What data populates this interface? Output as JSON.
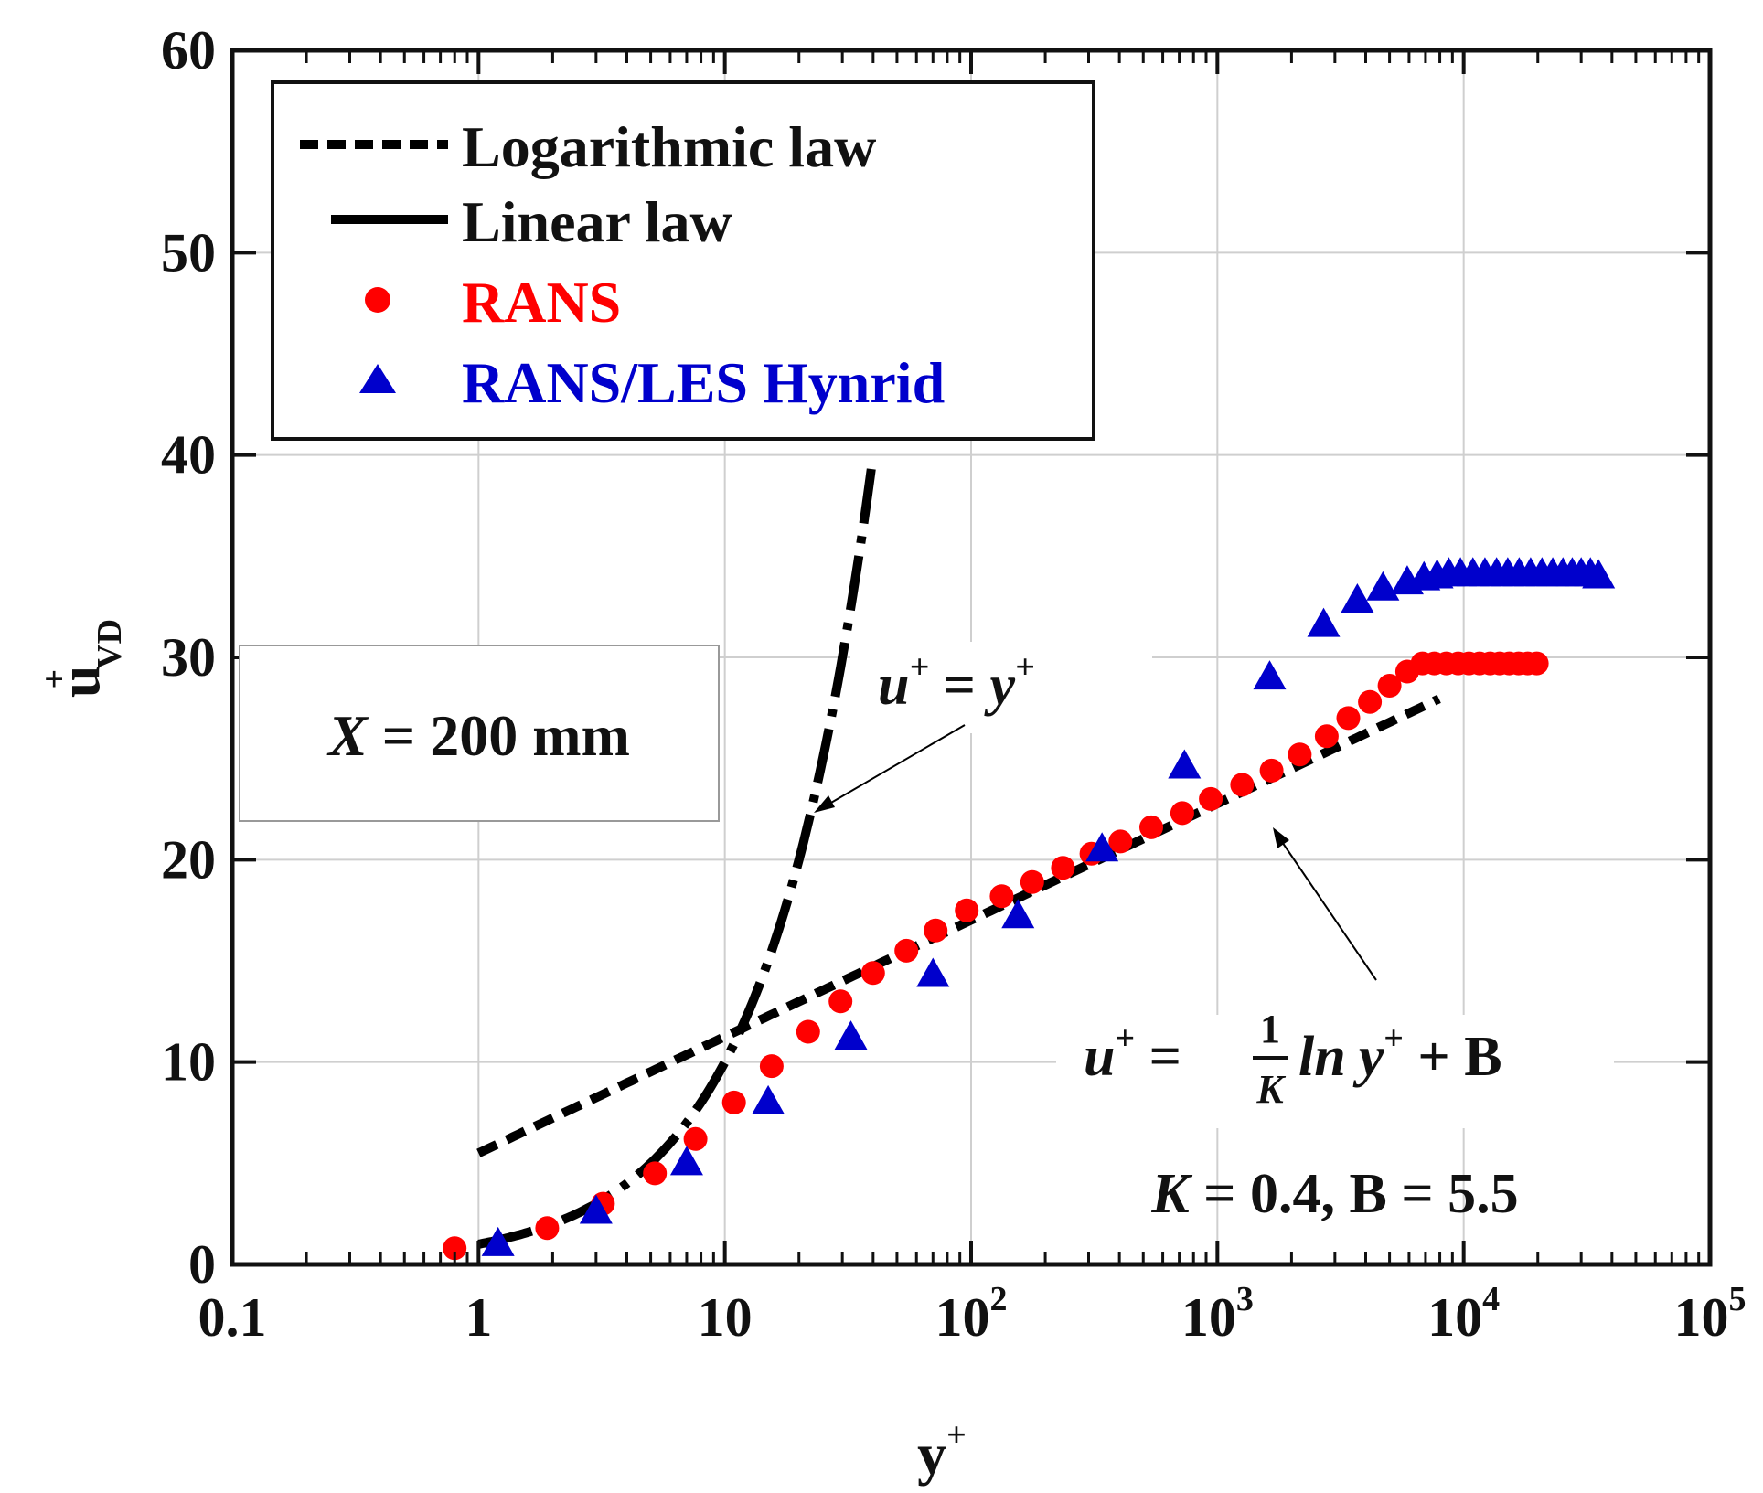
{
  "chart_data": {
    "type": "scatter",
    "x_scale": "log",
    "xlim": [
      0.1,
      100000
    ],
    "ylim": [
      0,
      60
    ],
    "x_ticks": [
      {
        "value": 0.1,
        "base": "0.1",
        "exp": ""
      },
      {
        "value": 1,
        "base": "1",
        "exp": ""
      },
      {
        "value": 10,
        "base": "10",
        "exp": ""
      },
      {
        "value": 100,
        "base": "10",
        "exp": "2"
      },
      {
        "value": 1000,
        "base": "10",
        "exp": "3"
      },
      {
        "value": 10000,
        "base": "10",
        "exp": "4"
      },
      {
        "value": 100000,
        "base": "10",
        "exp": "5"
      }
    ],
    "y_ticks": [
      {
        "value": 0,
        "label": "0"
      },
      {
        "value": 10,
        "label": "10"
      },
      {
        "value": 20,
        "label": "20"
      },
      {
        "value": 30,
        "label": "30"
      },
      {
        "value": 40,
        "label": "40"
      },
      {
        "value": 50,
        "label": "50"
      },
      {
        "value": 60,
        "label": "60"
      }
    ],
    "xlabel": {
      "base": "y",
      "sup": "+"
    },
    "ylabel": {
      "base": "u",
      "sup": "+",
      "sub": "VD"
    },
    "grid": true,
    "legend_position": "top-left",
    "colors": {
      "rans": "#ff0000",
      "hybrid": "#0000cc",
      "lines": "#000000"
    },
    "series": [
      {
        "key": "log",
        "name": "Logarithmic law",
        "kind": "dashed-line",
        "kappa": 0.4,
        "B": 5.5,
        "x_range": [
          1,
          8000
        ]
      },
      {
        "key": "linear",
        "name": "Linear law",
        "kind": "dashdot-line",
        "x_range": [
          1,
          40
        ]
      },
      {
        "key": "rans",
        "name": "RANS",
        "kind": "circle",
        "points": [
          [
            0.8,
            0.8
          ],
          [
            1.9,
            1.8
          ],
          [
            3.2,
            3.0
          ],
          [
            5.2,
            4.5
          ],
          [
            7.6,
            6.2
          ],
          [
            10.9,
            8.0
          ],
          [
            15.5,
            9.8
          ],
          [
            21.8,
            11.5
          ],
          [
            29.5,
            13.0
          ],
          [
            40,
            14.4
          ],
          [
            54.6,
            15.5
          ],
          [
            71.8,
            16.5
          ],
          [
            96,
            17.5
          ],
          [
            133,
            18.2
          ],
          [
            177,
            18.9
          ],
          [
            236,
            19.6
          ],
          [
            308,
            20.3
          ],
          [
            404,
            20.9
          ],
          [
            539,
            21.6
          ],
          [
            720,
            22.3
          ],
          [
            940,
            23.0
          ],
          [
            1260,
            23.7
          ],
          [
            1660,
            24.4
          ],
          [
            2160,
            25.2
          ],
          [
            2780,
            26.1
          ],
          [
            3400,
            27.0
          ],
          [
            4160,
            27.8
          ],
          [
            5000,
            28.6
          ],
          [
            5900,
            29.3
          ],
          [
            6800,
            29.7
          ],
          [
            7600,
            29.7
          ],
          [
            8500,
            29.7
          ],
          [
            9500,
            29.7
          ],
          [
            10500,
            29.7
          ],
          [
            11600,
            29.7
          ],
          [
            12800,
            29.7
          ],
          [
            14000,
            29.7
          ],
          [
            15300,
            29.7
          ],
          [
            16700,
            29.7
          ],
          [
            18200,
            29.7
          ],
          [
            19800,
            29.7
          ]
        ]
      },
      {
        "key": "hybrid",
        "name": "RANS/LES Hynrid",
        "kind": "triangle",
        "points": [
          [
            1.2,
            1.0
          ],
          [
            3.0,
            2.6
          ],
          [
            7.0,
            5.0
          ],
          [
            15.0,
            8.0
          ],
          [
            32.5,
            11.2
          ],
          [
            70,
            14.3
          ],
          [
            155,
            17.2
          ],
          [
            340,
            20.5
          ],
          [
            735,
            24.6
          ],
          [
            1630,
            29.0
          ],
          [
            2700,
            31.6
          ],
          [
            3700,
            32.8
          ],
          [
            4700,
            33.4
          ],
          [
            5900,
            33.7
          ],
          [
            6900,
            33.9
          ],
          [
            7800,
            34.0
          ],
          [
            8700,
            34.1
          ],
          [
            9700,
            34.1
          ],
          [
            10900,
            34.1
          ],
          [
            12200,
            34.1
          ],
          [
            13600,
            34.1
          ],
          [
            15100,
            34.1
          ],
          [
            16800,
            34.1
          ],
          [
            18700,
            34.1
          ],
          [
            20800,
            34.1
          ],
          [
            23000,
            34.1
          ],
          [
            25300,
            34.1
          ],
          [
            27600,
            34.1
          ],
          [
            30000,
            34.1
          ],
          [
            32700,
            34.1
          ],
          [
            35300,
            34.0
          ]
        ]
      }
    ],
    "annotations": {
      "linear_eq": {
        "lhs": "u",
        "lhs_sup": "+",
        "eq": " = ",
        "rhs": "y",
        "rhs_sup": "+"
      },
      "log_eq": {
        "lhs": "u",
        "lhs_sup": "+",
        "eq": " = ",
        "num": "1",
        "den": "K",
        "ln": "ln",
        "var": "y",
        "var_sup": "+",
        "tail": " + B"
      },
      "constants": {
        "k_sym": "K",
        "rest": " = 0.4, B = 5.5"
      },
      "position": {
        "var": "X",
        "rest": " = 200 mm"
      }
    }
  }
}
